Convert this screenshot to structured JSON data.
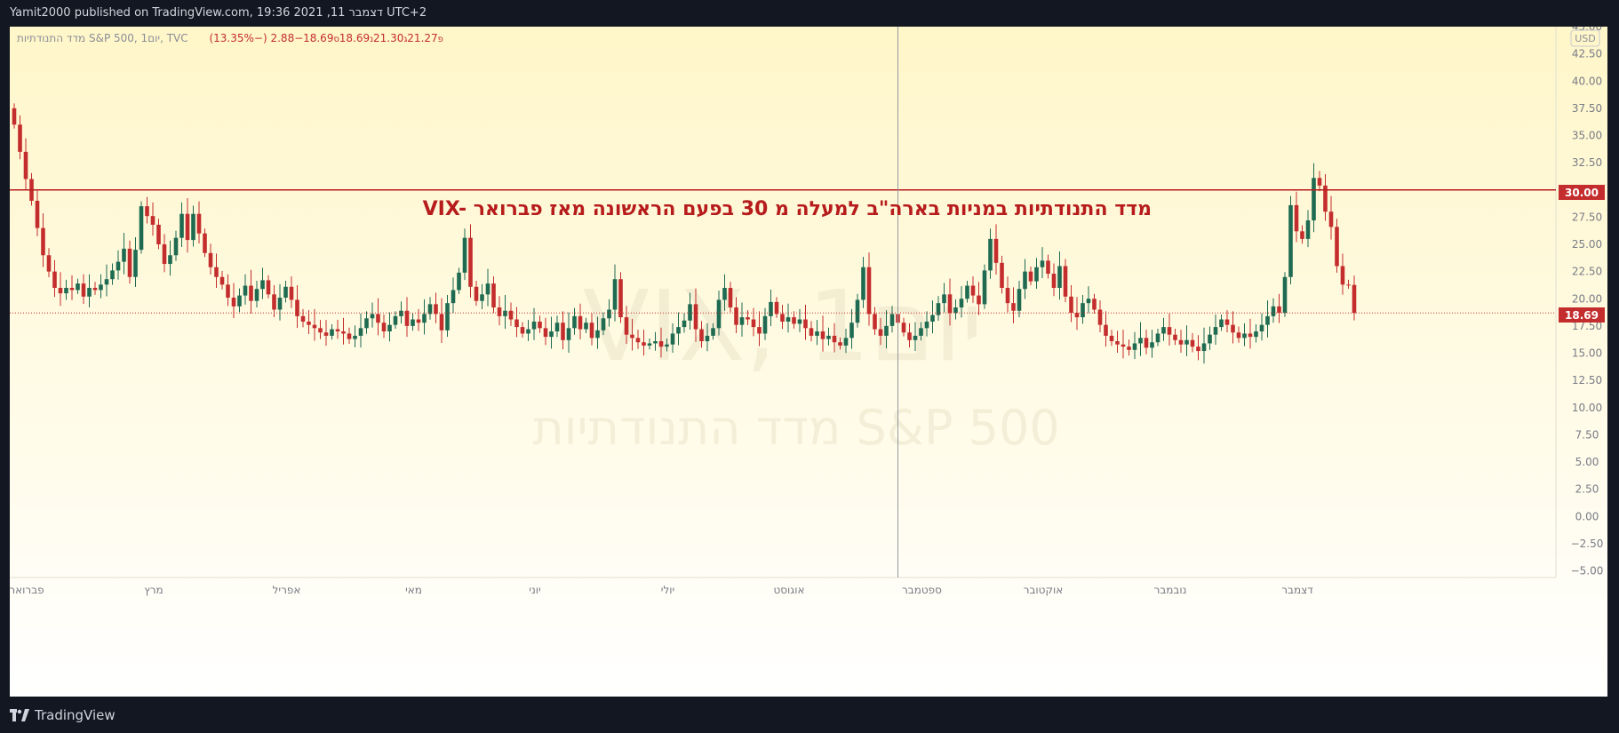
{
  "header": {
    "published_text": "Yamit2000 published on TradingView.com, 19:36 2021 ,11 דצמבר UTC+2"
  },
  "footer": {
    "brand": "TradingView"
  },
  "legend": {
    "symbol": "מדד התנודתיות S&P 500, יום1, TVC",
    "o_label": "פ",
    "o_value": "21.27",
    "h_label": "ג",
    "h_value": "21.30",
    "l_label": "נ",
    "l_value": "18.69",
    "c_label": "ס",
    "c_value": "18.69",
    "change": "−2.88 (−13.35%)"
  },
  "watermark": {
    "line1": "VIX, יום1",
    "line2": "מדד התנודתיות S&P 500"
  },
  "annotation": {
    "text": "VIX- מדד התנודתיות במניות בארה\"ב למעלה מ 30 בפעם הראשונה מאז פברואר"
  },
  "price_labels": {
    "level": "30.00",
    "last": "18.69",
    "currency": "USD"
  },
  "colors": {
    "up": "#1e6b52",
    "down": "#c42d2d",
    "level_line": "#b71c1c",
    "last_label": "#c42d2d",
    "bg_top": "#fff8d1",
    "bg_bottom": "#ffffff",
    "crosshair": "#9598a1"
  },
  "chart_data": {
    "type": "candlestick",
    "symbol": "VIX",
    "interval": "1D",
    "ylim": [
      -5,
      45
    ],
    "y_ticks": [
      "45.00",
      "42.50",
      "40.00",
      "37.50",
      "35.00",
      "32.50",
      "30.00",
      "27.50",
      "25.00",
      "22.50",
      "20.00",
      "17.50",
      "15.00",
      "12.50",
      "10.00",
      "7.50",
      "5.00",
      "2.50",
      "0.00",
      "−2.50",
      "−5.00"
    ],
    "months": [
      {
        "label": "פברואר",
        "index": 0
      },
      {
        "label": "מרץ",
        "index": 22
      },
      {
        "label": "אפריל",
        "index": 45
      },
      {
        "label": "מאי",
        "index": 67
      },
      {
        "label": "יוני",
        "index": 88
      },
      {
        "label": "יולי",
        "index": 111
      },
      {
        "label": "אוגוסט",
        "index": 132
      },
      {
        "label": "ספטמבר",
        "index": 155
      },
      {
        "label": "אוקטובר",
        "index": 176
      },
      {
        "label": "נובמבר",
        "index": 198
      },
      {
        "label": "דצמבר",
        "index": 220
      }
    ],
    "horizontal_level": 30.0,
    "last_close": 18.69,
    "crosshair_index": 153,
    "closes": [
      36.0,
      33.5,
      31.0,
      29.0,
      26.5,
      24.0,
      22.5,
      21.0,
      20.5,
      21.0,
      20.8,
      21.4,
      20.2,
      21.0,
      20.8,
      21.3,
      21.8,
      22.6,
      23.4,
      24.6,
      22.0,
      24.5,
      28.5,
      27.6,
      26.8,
      25.0,
      23.2,
      24.0,
      25.6,
      27.8,
      25.4,
      27.8,
      26.0,
      24.2,
      22.9,
      22.0,
      21.3,
      20.1,
      19.3,
      20.3,
      21.2,
      19.8,
      20.9,
      21.7,
      20.4,
      19.0,
      20.1,
      21.1,
      19.9,
      18.4,
      17.9,
      17.6,
      17.3,
      16.9,
      16.6,
      17.2,
      17.0,
      16.8,
      16.3,
      16.6,
      17.3,
      18.2,
      18.6,
      17.8,
      17.0,
      17.6,
      18.4,
      18.9,
      17.5,
      18.1,
      17.8,
      18.6,
      19.5,
      18.6,
      17.1,
      19.6,
      20.8,
      22.4,
      25.6,
      21.1,
      19.8,
      20.4,
      21.4,
      19.2,
      18.4,
      18.9,
      18.1,
      17.4,
      16.8,
      17.2,
      17.9,
      17.3,
      16.5,
      17.0,
      17.8,
      16.2,
      17.3,
      18.4,
      17.2,
      17.8,
      16.4,
      17.1,
      18.2,
      19.0,
      21.8,
      18.3,
      16.7,
      16.4,
      16.0,
      15.7,
      15.9,
      16.1,
      15.6,
      15.8,
      16.8,
      17.4,
      18.0,
      19.5,
      17.2,
      16.1,
      16.6,
      17.3,
      19.9,
      21.0,
      19.2,
      17.6,
      18.3,
      18.1,
      17.4,
      16.8,
      18.4,
      19.7,
      18.6,
      17.9,
      18.3,
      17.7,
      18.1,
      17.3,
      16.6,
      17.0,
      16.3,
      16.6,
      16.0,
      15.7,
      16.4,
      17.8,
      19.9,
      22.9,
      18.6,
      17.2,
      16.6,
      17.5,
      18.6,
      17.8,
      16.9,
      16.2,
      16.6,
      17.3,
      17.9,
      18.5,
      19.6,
      20.4,
      18.7,
      19.2,
      20.0,
      21.2,
      20.3,
      19.5,
      22.6,
      25.5,
      23.3,
      21.0,
      19.6,
      18.9,
      20.9,
      22.5,
      21.6,
      22.9,
      23.5,
      22.3,
      21.0,
      23.0,
      20.2,
      18.7,
      18.3,
      19.6,
      20.0,
      19.0,
      17.6,
      16.6,
      16.1,
      15.8,
      15.6,
      15.3,
      15.9,
      16.4,
      15.5,
      16.0,
      16.8,
      17.4,
      16.7,
      16.2,
      15.8,
      16.2,
      15.6,
      15.2,
      15.9,
      16.7,
      17.4,
      18.1,
      17.6,
      16.9,
      16.4,
      16.8,
      16.5,
      17.0,
      17.6,
      18.4,
      19.3,
      18.7,
      22.0,
      28.6,
      26.2,
      25.5,
      27.2,
      31.1,
      30.4,
      28.0,
      26.6,
      23.0,
      21.3,
      21.27,
      18.69
    ]
  }
}
